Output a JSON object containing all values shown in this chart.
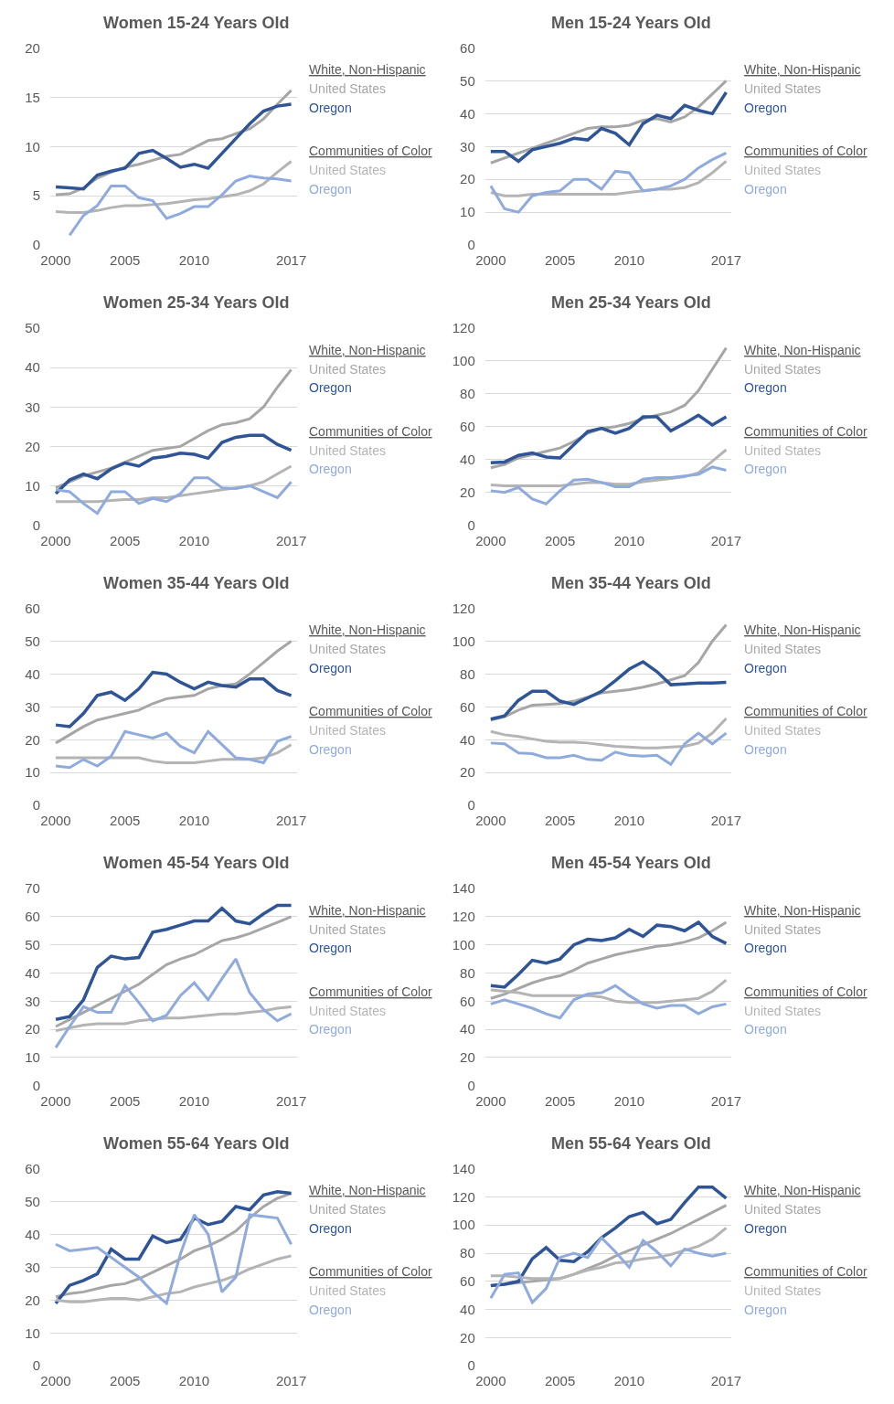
{
  "chart_data": [
    {
      "type": "line",
      "title": "Women 15-24 Years Old",
      "x": [
        2000,
        2001,
        2002,
        2003,
        2004,
        2005,
        2006,
        2007,
        2008,
        2009,
        2010,
        2011,
        2012,
        2013,
        2014,
        2015,
        2016,
        2017
      ],
      "xlim": [
        1999.6,
        2017.4
      ],
      "xticks": [
        2000,
        2005,
        2010,
        2017
      ],
      "ylim": [
        0,
        20
      ],
      "yticks": [
        0,
        5,
        10,
        15,
        20
      ],
      "grid": "y",
      "legend": "right",
      "annotations": [
        "White, Non-Hispanic",
        "Communities of Color"
      ],
      "series": [
        {
          "name": "United States",
          "color": "#a6a6a6",
          "values": [
            5.1,
            5.2,
            5.8,
            6.8,
            7.4,
            7.9,
            8.2,
            8.6,
            9.0,
            9.2,
            9.9,
            10.6,
            10.8,
            11.3,
            11.8,
            12.8,
            14.3,
            15.7
          ]
        },
        {
          "name": "Oregon",
          "color": "#2f5597",
          "values": [
            5.9,
            5.8,
            5.7,
            7.1,
            7.5,
            7.8,
            9.3,
            9.6,
            8.8,
            7.9,
            8.2,
            7.8,
            9.3,
            10.8,
            12.3,
            13.6,
            14.1,
            14.3
          ]
        },
        {
          "name": "United States",
          "color": "#b4b4b4",
          "values": [
            3.4,
            3.3,
            3.3,
            3.5,
            3.8,
            4.0,
            4.0,
            4.1,
            4.2,
            4.4,
            4.6,
            4.7,
            4.9,
            5.1,
            5.5,
            6.2,
            7.4,
            8.5
          ]
        },
        {
          "name": "Oregon",
          "color": "#8faadc",
          "values": [
            null,
            1.0,
            3.0,
            4.0,
            6.0,
            6.0,
            4.8,
            4.5,
            2.7,
            3.2,
            3.9,
            3.9,
            5.1,
            6.5,
            7.0,
            6.8,
            6.7,
            6.5
          ]
        }
      ]
    },
    {
      "type": "line",
      "title": "Men 15-24 Years Old",
      "x": [
        2000,
        2001,
        2002,
        2003,
        2004,
        2005,
        2006,
        2007,
        2008,
        2009,
        2010,
        2011,
        2012,
        2013,
        2014,
        2015,
        2016,
        2017
      ],
      "xlim": [
        1999.6,
        2017.4
      ],
      "xticks": [
        2000,
        2005,
        2010,
        2017
      ],
      "ylim": [
        0,
        60
      ],
      "yticks": [
        0,
        10,
        20,
        30,
        40,
        50,
        60
      ],
      "grid": "y",
      "legend": "right",
      "annotations": [
        "White, Non-Hispanic",
        "Communities of Color"
      ],
      "series": [
        {
          "name": "United States",
          "color": "#a6a6a6",
          "values": [
            25,
            26.5,
            28,
            29.5,
            31,
            32.5,
            34,
            35.5,
            36,
            36,
            36.5,
            38,
            38.5,
            37.5,
            39,
            42,
            46,
            50
          ]
        },
        {
          "name": "Oregon",
          "color": "#2f5597",
          "values": [
            28.5,
            28.5,
            25.5,
            29,
            30,
            31,
            32.5,
            32,
            35.5,
            34,
            30.5,
            37,
            39.5,
            38.5,
            42.5,
            41,
            40,
            46.5
          ]
        },
        {
          "name": "United States",
          "color": "#b4b4b4",
          "values": [
            16,
            15,
            15,
            15.5,
            15.5,
            15.5,
            15.5,
            15.5,
            15.5,
            15.5,
            16,
            16.5,
            17,
            17,
            17.5,
            19,
            22,
            25.5
          ]
        },
        {
          "name": "Oregon",
          "color": "#8faadc",
          "values": [
            18,
            11,
            10,
            15,
            16,
            16.5,
            20,
            20,
            17,
            22.5,
            22,
            16.5,
            17,
            18,
            20,
            23.5,
            26,
            28
          ]
        }
      ]
    },
    {
      "type": "line",
      "title": "Women 25-34 Years Old",
      "x": [
        2000,
        2001,
        2002,
        2003,
        2004,
        2005,
        2006,
        2007,
        2008,
        2009,
        2010,
        2011,
        2012,
        2013,
        2014,
        2015,
        2016,
        2017
      ],
      "xlim": [
        1999.6,
        2017.4
      ],
      "xticks": [
        2000,
        2005,
        2010,
        2017
      ],
      "ylim": [
        0,
        50
      ],
      "yticks": [
        0,
        10,
        20,
        30,
        40,
        50
      ],
      "grid": "y",
      "legend": "right",
      "annotations": [
        "White, Non-Hispanic",
        "Communities of Color"
      ],
      "series": [
        {
          "name": "United States",
          "color": "#a6a6a6",
          "values": [
            9.5,
            11,
            12.5,
            13.5,
            14.5,
            16,
            17.5,
            19,
            19.5,
            20,
            22,
            24,
            25.5,
            26,
            27,
            30,
            35,
            39.5
          ]
        },
        {
          "name": "Oregon",
          "color": "#2f5597",
          "values": [
            8,
            11.5,
            13,
            11.8,
            14.3,
            15.8,
            15,
            17,
            17.5,
            18.3,
            18,
            17,
            21,
            22.3,
            22.8,
            22.8,
            20.5,
            19
          ]
        },
        {
          "name": "United States",
          "color": "#b4b4b4",
          "values": [
            6,
            6,
            6,
            6,
            6.3,
            6.5,
            6.5,
            7,
            7,
            7.5,
            8,
            8.5,
            9,
            9.5,
            10,
            11,
            13,
            15
          ]
        },
        {
          "name": "Oregon",
          "color": "#8faadc",
          "values": [
            9,
            8.5,
            5.5,
            3,
            8.5,
            8.5,
            5.5,
            6.8,
            6,
            8,
            12,
            12,
            9.5,
            9.3,
            10,
            8.5,
            7,
            11
          ]
        }
      ]
    },
    {
      "type": "line",
      "title": "Men 25-34 Years Old",
      "x": [
        2000,
        2001,
        2002,
        2003,
        2004,
        2005,
        2006,
        2007,
        2008,
        2009,
        2010,
        2011,
        2012,
        2013,
        2014,
        2015,
        2016,
        2017
      ],
      "xlim": [
        1999.6,
        2017.4
      ],
      "xticks": [
        2000,
        2005,
        2010,
        2017
      ],
      "ylim": [
        0,
        120
      ],
      "yticks": [
        0,
        20,
        40,
        60,
        80,
        100,
        120
      ],
      "grid": "y",
      "legend": "right",
      "annotations": [
        "White, Non-Hispanic",
        "Communities of Color"
      ],
      "series": [
        {
          "name": "United States",
          "color": "#a6a6a6",
          "values": [
            35,
            37,
            41,
            43,
            45,
            47,
            51,
            56,
            59,
            60,
            62,
            65,
            67,
            69,
            73,
            82,
            95,
            108
          ]
        },
        {
          "name": "Oregon",
          "color": "#2f5597",
          "values": [
            38,
            38.5,
            42.5,
            44,
            41.5,
            41,
            49,
            57,
            59,
            56,
            59,
            66,
            66,
            57.5,
            62,
            67,
            61,
            66
          ]
        },
        {
          "name": "United States",
          "color": "#b4b4b4",
          "values": [
            24.5,
            24,
            24,
            24,
            24,
            24,
            25,
            26,
            26,
            25,
            25,
            26.5,
            27.5,
            28.5,
            29.5,
            32,
            39,
            46
          ]
        },
        {
          "name": "Oregon",
          "color": "#8faadc",
          "values": [
            21,
            20,
            23,
            16,
            13,
            21,
            27.5,
            28,
            26,
            23.5,
            23.5,
            28,
            29,
            29,
            30,
            31,
            35.5,
            33.5
          ]
        }
      ]
    },
    {
      "type": "line",
      "title": "Women 35-44 Years Old",
      "x": [
        2000,
        2001,
        2002,
        2003,
        2004,
        2005,
        2006,
        2007,
        2008,
        2009,
        2010,
        2011,
        2012,
        2013,
        2014,
        2015,
        2016,
        2017
      ],
      "xlim": [
        1999.6,
        2017.4
      ],
      "xticks": [
        2000,
        2005,
        2010,
        2017
      ],
      "ylim": [
        0,
        60
      ],
      "yticks": [
        0,
        10,
        20,
        30,
        40,
        50,
        60
      ],
      "grid": "y",
      "legend": "right",
      "annotations": [
        "White, Non-Hispanic",
        "Communities of Color"
      ],
      "series": [
        {
          "name": "United States",
          "color": "#a6a6a6",
          "values": [
            19,
            21.5,
            24,
            26,
            27,
            28,
            29,
            31,
            32.5,
            33,
            33.5,
            35.5,
            36.5,
            37,
            40,
            43.5,
            47,
            50
          ]
        },
        {
          "name": "Oregon",
          "color": "#2f5597",
          "values": [
            24.5,
            24,
            28,
            33.5,
            34.5,
            32,
            35.5,
            40.5,
            40,
            37.5,
            35.5,
            37.5,
            36.5,
            36,
            38.5,
            38.5,
            35,
            33.5
          ]
        },
        {
          "name": "United States",
          "color": "#b4b4b4",
          "values": [
            14.5,
            14.5,
            14.5,
            14.5,
            14.5,
            14.5,
            14.5,
            13.5,
            13,
            13,
            13,
            13.5,
            14,
            14,
            14,
            14.5,
            16,
            18.5
          ]
        },
        {
          "name": "Oregon",
          "color": "#8faadc",
          "values": [
            12,
            11.5,
            14,
            12,
            15,
            22.5,
            21.5,
            20.5,
            22,
            18,
            16,
            22.5,
            18.5,
            14.5,
            14,
            13,
            19.5,
            21
          ]
        }
      ]
    },
    {
      "type": "line",
      "title": "Men 35-44 Years Old",
      "x": [
        2000,
        2001,
        2002,
        2003,
        2004,
        2005,
        2006,
        2007,
        2008,
        2009,
        2010,
        2011,
        2012,
        2013,
        2014,
        2015,
        2016,
        2017
      ],
      "xlim": [
        1999.6,
        2017.4
      ],
      "xticks": [
        2000,
        2005,
        2010,
        2017
      ],
      "ylim": [
        0,
        120
      ],
      "yticks": [
        0,
        20,
        40,
        60,
        80,
        100,
        120
      ],
      "grid": "y",
      "legend": "right",
      "annotations": [
        "White, Non-Hispanic",
        "Communities of Color"
      ],
      "series": [
        {
          "name": "United States",
          "color": "#a6a6a6",
          "values": [
            52,
            54,
            58,
            61,
            61.5,
            62,
            63.5,
            66,
            68.5,
            69.5,
            70.5,
            72,
            74,
            76.5,
            79,
            87,
            100,
            110
          ]
        },
        {
          "name": "Oregon",
          "color": "#2f5597",
          "values": [
            52.5,
            54.5,
            64,
            69.5,
            69.5,
            63.5,
            61.5,
            65.5,
            69.5,
            76,
            83,
            87.5,
            81.5,
            73.5,
            74,
            74.5,
            74.5,
            75
          ]
        },
        {
          "name": "United States",
          "color": "#b4b4b4",
          "values": [
            45,
            43,
            42,
            40.5,
            39,
            38.5,
            38.5,
            38,
            37,
            36,
            35.5,
            35,
            35,
            35.5,
            36,
            38,
            44,
            53
          ]
        },
        {
          "name": "Oregon",
          "color": "#8faadc",
          "values": [
            38,
            37.5,
            32,
            31.5,
            29,
            29,
            30.5,
            28,
            27.5,
            32.5,
            30.5,
            30,
            30.5,
            25,
            37.5,
            44,
            37.5,
            44
          ]
        }
      ]
    },
    {
      "type": "line",
      "title": "Women 45-54 Years Old",
      "x": [
        2000,
        2001,
        2002,
        2003,
        2004,
        2005,
        2006,
        2007,
        2008,
        2009,
        2010,
        2011,
        2012,
        2013,
        2014,
        2015,
        2016,
        2017
      ],
      "xlim": [
        1999.6,
        2017.4
      ],
      "xticks": [
        2000,
        2005,
        2010,
        2017
      ],
      "ylim": [
        0,
        70
      ],
      "yticks": [
        0,
        10,
        20,
        30,
        40,
        50,
        60,
        70
      ],
      "grid": "y",
      "legend": "right",
      "annotations": [
        "White, Non-Hispanic",
        "Communities of Color"
      ],
      "series": [
        {
          "name": "United States",
          "color": "#a6a6a6",
          "values": [
            21,
            23.5,
            26,
            28.5,
            31,
            33.5,
            36,
            39.5,
            43,
            45,
            46.5,
            49,
            51.5,
            52.5,
            54,
            56,
            58,
            60
          ]
        },
        {
          "name": "Oregon",
          "color": "#2f5597",
          "values": [
            23.5,
            24.5,
            30.5,
            42,
            46,
            45,
            45.5,
            54.5,
            55.5,
            57,
            58.5,
            58.5,
            63,
            58.5,
            57.5,
            61,
            64,
            64
          ]
        },
        {
          "name": "United States",
          "color": "#b4b4b4",
          "values": [
            19.5,
            20.5,
            21.5,
            22,
            22,
            22,
            23,
            23.5,
            24,
            24,
            24.5,
            25,
            25.5,
            25.5,
            26,
            26.5,
            27.5,
            28
          ]
        },
        {
          "name": "Oregon",
          "color": "#8faadc",
          "values": [
            13.5,
            21,
            28,
            26,
            26,
            35.5,
            29.5,
            23,
            25,
            32,
            36.5,
            30.5,
            38,
            45,
            33,
            27,
            23,
            25.5
          ]
        }
      ]
    },
    {
      "type": "line",
      "title": "Men 45-54 Years Old",
      "x": [
        2000,
        2001,
        2002,
        2003,
        2004,
        2005,
        2006,
        2007,
        2008,
        2009,
        2010,
        2011,
        2012,
        2013,
        2014,
        2015,
        2016,
        2017
      ],
      "xlim": [
        1999.6,
        2017.4
      ],
      "xticks": [
        2000,
        2005,
        2010,
        2017
      ],
      "ylim": [
        0,
        140
      ],
      "yticks": [
        0,
        20,
        40,
        60,
        80,
        100,
        120,
        140
      ],
      "grid": "y",
      "legend": "right",
      "annotations": [
        "White, Non-Hispanic",
        "Communities of Color"
      ],
      "series": [
        {
          "name": "United States",
          "color": "#a6a6a6",
          "values": [
            62,
            65,
            69,
            73,
            76,
            78,
            82,
            87,
            90,
            93,
            95,
            97,
            99,
            100,
            102,
            105,
            110,
            116
          ]
        },
        {
          "name": "Oregon",
          "color": "#2f5597",
          "values": [
            71,
            70,
            79,
            89,
            87,
            90,
            100,
            104,
            103,
            105,
            111,
            106,
            114,
            113,
            110,
            116,
            106,
            101
          ]
        },
        {
          "name": "United States",
          "color": "#b4b4b4",
          "values": [
            68,
            67,
            66,
            64,
            64,
            64,
            64,
            64,
            63,
            60,
            59,
            59,
            59,
            60,
            61,
            62,
            67,
            75
          ]
        },
        {
          "name": "Oregon",
          "color": "#8faadc",
          "values": [
            58,
            61,
            58,
            55,
            51,
            48,
            61,
            65,
            66,
            71,
            64,
            58,
            55,
            57,
            57,
            51,
            56,
            58
          ]
        }
      ]
    },
    {
      "type": "line",
      "title": "Women 55-64 Years Old",
      "x": [
        2000,
        2001,
        2002,
        2003,
        2004,
        2005,
        2006,
        2007,
        2008,
        2009,
        2010,
        2011,
        2012,
        2013,
        2014,
        2015,
        2016,
        2017
      ],
      "xlim": [
        1999.6,
        2017.4
      ],
      "xticks": [
        2000,
        2005,
        2010,
        2017
      ],
      "ylim": [
        0,
        60
      ],
      "yticks": [
        0,
        10,
        20,
        30,
        40,
        50,
        60
      ],
      "grid": "y",
      "legend": "right",
      "annotations": [
        "White, Non-Hispanic",
        "Communities of Color"
      ],
      "series": [
        {
          "name": "United States",
          "color": "#a6a6a6",
          "values": [
            21,
            22,
            22.5,
            23.5,
            24.5,
            25,
            26.5,
            28.5,
            30.5,
            32.5,
            35,
            36.5,
            38.5,
            41,
            45,
            48.5,
            51,
            52.5
          ]
        },
        {
          "name": "Oregon",
          "color": "#2f5597",
          "values": [
            19,
            24.5,
            26,
            28,
            35.5,
            32.5,
            32.5,
            39.5,
            37.5,
            38.5,
            45,
            43,
            44,
            48.5,
            47.5,
            52,
            53,
            52.5
          ]
        },
        {
          "name": "United States",
          "color": "#b4b4b4",
          "values": [
            20,
            19.5,
            19.5,
            20,
            20.5,
            20.5,
            20,
            21,
            22,
            22.5,
            24,
            25,
            26,
            27.5,
            29.5,
            31,
            32.5,
            33.5
          ]
        },
        {
          "name": "Oregon",
          "color": "#8faadc",
          "values": [
            37,
            35,
            35.5,
            36,
            33,
            30,
            27,
            22.5,
            19,
            34,
            46,
            40,
            22.5,
            27,
            46,
            45.5,
            45,
            37
          ]
        }
      ]
    },
    {
      "type": "line",
      "title": "Men 55-64 Years Old",
      "x": [
        2000,
        2001,
        2002,
        2003,
        2004,
        2005,
        2006,
        2007,
        2008,
        2009,
        2010,
        2011,
        2012,
        2013,
        2014,
        2015,
        2016,
        2017
      ],
      "xlim": [
        1999.6,
        2017.4
      ],
      "xticks": [
        2000,
        2005,
        2010,
        2017
      ],
      "ylim": [
        0,
        140
      ],
      "yticks": [
        0,
        20,
        40,
        60,
        80,
        100,
        120,
        140
      ],
      "grid": "y",
      "legend": "right",
      "annotations": [
        "White, Non-Hispanic",
        "Communities of Color"
      ],
      "series": [
        {
          "name": "United States",
          "color": "#a6a6a6",
          "values": [
            57,
            58,
            59,
            60,
            61,
            62,
            65,
            69,
            73,
            78,
            82,
            86,
            90,
            94,
            99,
            104,
            109,
            114
          ]
        },
        {
          "name": "Oregon",
          "color": "#2f5597",
          "values": [
            57,
            58,
            60,
            76,
            84,
            75,
            74,
            81,
            91,
            98,
            106,
            109,
            101,
            104,
            116,
            127,
            127,
            119
          ]
        },
        {
          "name": "United States",
          "color": "#b4b4b4",
          "values": [
            64,
            64,
            63,
            62,
            62,
            62,
            65,
            68,
            70,
            73,
            74,
            76,
            77,
            79,
            82,
            85,
            90,
            98
          ]
        },
        {
          "name": "Oregon",
          "color": "#8faadc",
          "values": [
            48,
            65,
            66,
            45,
            55,
            77,
            80,
            77,
            91,
            81,
            70,
            89,
            81,
            71,
            83,
            80,
            78,
            80
          ]
        }
      ]
    }
  ]
}
